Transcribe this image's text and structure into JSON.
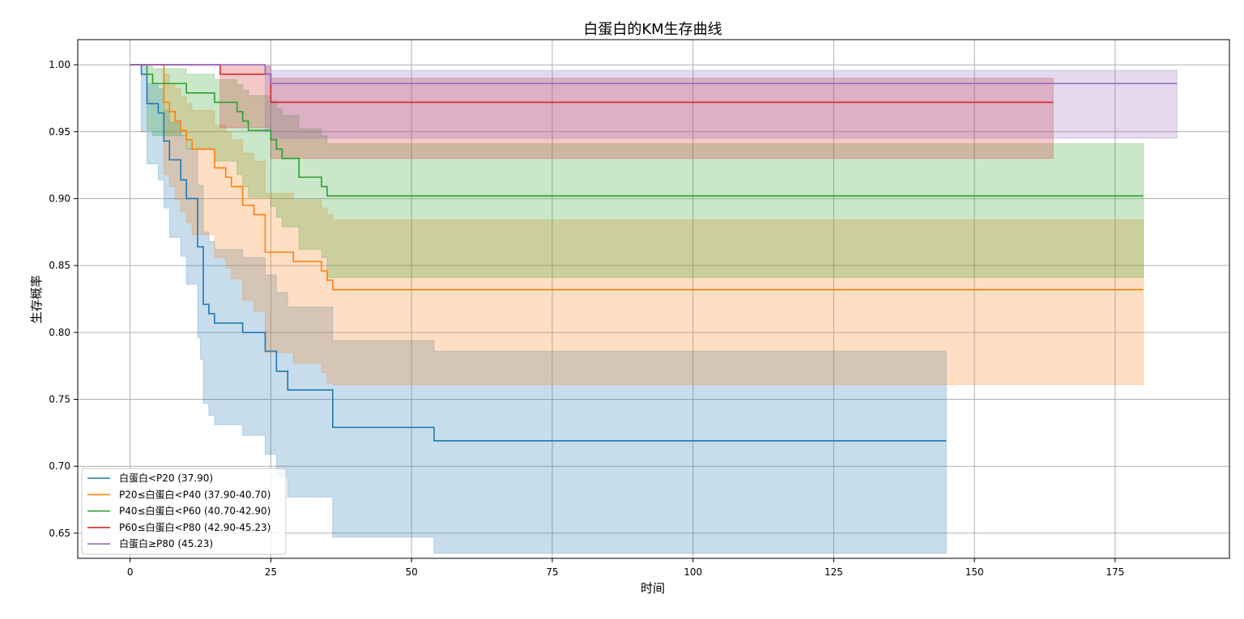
{
  "chart_data": {
    "type": "line",
    "title": "白蛋白的KM生存曲线",
    "xlabel": "时间",
    "ylabel": "生存概率",
    "xlim": [
      -9.3,
      195.3
    ],
    "ylim": [
      0.6312,
      1.0188
    ],
    "x_ticks": [
      0,
      25,
      50,
      75,
      100,
      125,
      150,
      175
    ],
    "x_tick_labels": [
      "0",
      "25",
      "50",
      "75",
      "100",
      "125",
      "150",
      "175"
    ],
    "y_ticks": [
      0.65,
      0.7,
      0.75,
      0.8,
      0.85,
      0.9,
      0.95,
      1.0
    ],
    "y_tick_labels": [
      "0.65",
      "0.70",
      "0.75",
      "0.80",
      "0.85",
      "0.90",
      "0.95",
      "1.00"
    ],
    "grid": true,
    "legend_position": "bottom-left",
    "series": [
      {
        "name": "白蛋白<P20 (37.90)",
        "color": "#1f77b4",
        "x": [
          0,
          2,
          3,
          5,
          6,
          7,
          9,
          10,
          12,
          12.5,
          13,
          14,
          15,
          20,
          24,
          26,
          28,
          36,
          54,
          145
        ],
        "y": [
          1.0,
          0.993,
          0.971,
          0.964,
          0.943,
          0.929,
          0.914,
          0.9,
          0.864,
          0.864,
          0.821,
          0.814,
          0.807,
          0.8,
          0.786,
          0.771,
          0.757,
          0.729,
          0.719,
          0.719
        ],
        "ci_lower": [
          1.0,
          0.95,
          0.926,
          0.914,
          0.893,
          0.871,
          0.857,
          0.836,
          0.796,
          0.78,
          0.747,
          0.738,
          0.731,
          0.723,
          0.709,
          0.692,
          0.677,
          0.647,
          0.635,
          0.635
        ],
        "ci_upper": [
          1.0,
          0.999,
          0.986,
          0.982,
          0.966,
          0.957,
          0.947,
          0.937,
          0.91,
          0.91,
          0.875,
          0.868,
          0.862,
          0.856,
          0.843,
          0.83,
          0.819,
          0.794,
          0.786,
          0.786
        ]
      },
      {
        "name": "P20≤白蛋白<P40 (37.90-40.70)",
        "color": "#ff7f0e",
        "x": [
          0,
          6,
          7,
          8,
          9,
          10,
          11,
          13,
          15,
          17,
          18,
          20,
          22,
          24,
          26,
          29,
          30,
          34,
          35,
          36,
          180
        ],
        "y": [
          1.0,
          0.972,
          0.965,
          0.958,
          0.951,
          0.944,
          0.937,
          0.937,
          0.923,
          0.916,
          0.909,
          0.895,
          0.888,
          0.86,
          0.86,
          0.853,
          0.853,
          0.846,
          0.839,
          0.832,
          0.832
        ],
        "ci_lower": [
          1.0,
          0.918,
          0.909,
          0.899,
          0.89,
          0.882,
          0.873,
          0.873,
          0.856,
          0.848,
          0.84,
          0.824,
          0.816,
          0.785,
          0.785,
          0.777,
          0.777,
          0.77,
          0.762,
          0.761,
          0.761
        ],
        "ci_upper": [
          1.0,
          0.993,
          0.986,
          0.982,
          0.976,
          0.971,
          0.966,
          0.966,
          0.955,
          0.95,
          0.944,
          0.934,
          0.928,
          0.904,
          0.904,
          0.899,
          0.899,
          0.893,
          0.888,
          0.884,
          0.884
        ]
      },
      {
        "name": "P40≤白蛋白<P60 (40.70-42.90)",
        "color": "#2ca02c",
        "x": [
          0,
          3,
          4,
          10,
          15,
          19,
          20,
          21,
          25,
          26,
          27,
          30,
          34,
          35,
          180
        ],
        "y": [
          1.0,
          0.993,
          0.986,
          0.979,
          0.972,
          0.965,
          0.958,
          0.951,
          0.944,
          0.937,
          0.93,
          0.916,
          0.909,
          0.902,
          0.902
        ],
        "ci_lower": [
          1.0,
          0.951,
          0.947,
          0.937,
          0.928,
          0.918,
          0.909,
          0.901,
          0.894,
          0.886,
          0.879,
          0.862,
          0.856,
          0.841,
          0.841
        ],
        "ci_upper": [
          1.0,
          0.999,
          0.997,
          0.993,
          0.989,
          0.985,
          0.981,
          0.977,
          0.973,
          0.967,
          0.962,
          0.952,
          0.947,
          0.941,
          0.941
        ]
      },
      {
        "name": "P60≤白蛋白<P80 (42.90-45.23)",
        "color": "#d62728",
        "x": [
          0,
          16,
          25,
          164
        ],
        "y": [
          1.0,
          0.993,
          0.972,
          0.972
        ],
        "ci_lower": [
          1.0,
          0.953,
          0.93,
          0.93
        ],
        "ci_upper": [
          1.0,
          0.999,
          0.99,
          0.99
        ]
      },
      {
        "name": "白蛋白≥P80 (45.23)",
        "color": "#9467bd",
        "x": [
          0,
          24,
          25,
          186
        ],
        "y": [
          1.0,
          0.993,
          0.986,
          0.986
        ],
        "ci_lower": [
          1.0,
          0.95,
          0.945,
          0.945
        ],
        "ci_upper": [
          1.0,
          0.999,
          0.996,
          0.996
        ]
      }
    ]
  }
}
